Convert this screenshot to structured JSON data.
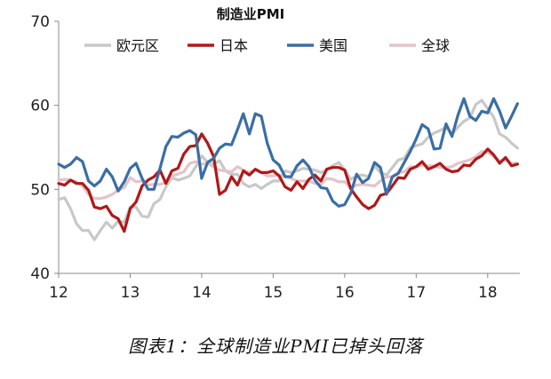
{
  "caption": "图表1：全球制造业PMI已掉头回落",
  "chart_data": {
    "type": "line",
    "title": "制造业PMI",
    "xlabel": "",
    "ylabel": "",
    "ylim": [
      40,
      70
    ],
    "yticks": [
      40,
      50,
      60,
      70
    ],
    "xlim": [
      2012,
      2018.45
    ],
    "xticks": [
      2012,
      2013,
      2014,
      2015,
      2016,
      2017,
      2018
    ],
    "xtick_labels": [
      "12",
      "13",
      "14",
      "15",
      "16",
      "17",
      "18"
    ],
    "grid": false,
    "legend_position": "top",
    "series": [
      {
        "name": "欧元区",
        "color": "#c8c8c8",
        "x": [
          2012.0,
          2012.083,
          2012.167,
          2012.25,
          2012.333,
          2012.417,
          2012.5,
          2012.583,
          2012.667,
          2012.75,
          2012.833,
          2012.917,
          2013.0,
          2013.083,
          2013.167,
          2013.25,
          2013.333,
          2013.417,
          2013.5,
          2013.583,
          2013.667,
          2013.75,
          2013.833,
          2013.917,
          2014.0,
          2014.083,
          2014.167,
          2014.25,
          2014.333,
          2014.417,
          2014.5,
          2014.583,
          2014.667,
          2014.75,
          2014.833,
          2014.917,
          2015.0,
          2015.083,
          2015.167,
          2015.25,
          2015.333,
          2015.417,
          2015.5,
          2015.583,
          2015.667,
          2015.75,
          2015.833,
          2015.917,
          2016.0,
          2016.083,
          2016.167,
          2016.25,
          2016.333,
          2016.417,
          2016.5,
          2016.583,
          2016.667,
          2016.75,
          2016.833,
          2016.917,
          2017.0,
          2017.083,
          2017.167,
          2017.25,
          2017.333,
          2017.417,
          2017.5,
          2017.583,
          2017.667,
          2017.75,
          2017.833,
          2017.917,
          2018.0,
          2018.083,
          2018.167,
          2018.25,
          2018.333,
          2018.417
        ],
        "values": [
          48.8,
          49.0,
          47.7,
          45.9,
          45.1,
          45.1,
          44.0,
          45.1,
          46.1,
          45.4,
          46.2,
          46.1,
          47.9,
          47.9,
          46.8,
          46.7,
          48.3,
          48.8,
          50.3,
          51.4,
          51.1,
          51.3,
          51.6,
          52.7,
          54.0,
          53.2,
          53.0,
          53.4,
          52.2,
          51.8,
          51.8,
          50.7,
          50.3,
          50.6,
          50.1,
          50.6,
          51.0,
          51.0,
          52.2,
          52.0,
          52.2,
          52.5,
          52.4,
          52.3,
          52.0,
          52.3,
          52.8,
          53.2,
          52.3,
          51.2,
          51.6,
          51.7,
          51.5,
          52.8,
          52.0,
          51.7,
          52.6,
          53.5,
          53.7,
          54.9,
          55.2,
          55.4,
          56.2,
          56.7,
          57.0,
          57.4,
          56.6,
          57.4,
          58.1,
          58.5,
          60.1,
          60.6,
          59.6,
          58.6,
          56.6,
          56.2,
          55.5,
          54.9
        ]
      },
      {
        "name": "日本",
        "color": "#b01818",
        "x": [
          2012.0,
          2012.083,
          2012.167,
          2012.25,
          2012.333,
          2012.417,
          2012.5,
          2012.583,
          2012.667,
          2012.75,
          2012.833,
          2012.917,
          2013.0,
          2013.083,
          2013.167,
          2013.25,
          2013.333,
          2013.417,
          2013.5,
          2013.583,
          2013.667,
          2013.75,
          2013.833,
          2013.917,
          2014.0,
          2014.083,
          2014.167,
          2014.25,
          2014.333,
          2014.417,
          2014.5,
          2014.583,
          2014.667,
          2014.75,
          2014.833,
          2014.917,
          2015.0,
          2015.083,
          2015.167,
          2015.25,
          2015.333,
          2015.417,
          2015.5,
          2015.583,
          2015.667,
          2015.75,
          2015.833,
          2015.917,
          2016.0,
          2016.083,
          2016.167,
          2016.25,
          2016.333,
          2016.417,
          2016.5,
          2016.583,
          2016.667,
          2016.75,
          2016.833,
          2016.917,
          2017.0,
          2017.083,
          2017.167,
          2017.25,
          2017.333,
          2017.417,
          2017.5,
          2017.583,
          2017.667,
          2017.75,
          2017.833,
          2017.917,
          2018.0,
          2018.083,
          2018.167,
          2018.25,
          2018.333,
          2018.417
        ],
        "values": [
          50.7,
          50.5,
          51.1,
          50.7,
          50.7,
          49.9,
          47.9,
          47.7,
          48.0,
          46.9,
          46.5,
          45.0,
          47.7,
          48.5,
          50.4,
          51.1,
          51.5,
          52.3,
          50.7,
          52.2,
          52.5,
          54.2,
          55.1,
          55.2,
          56.6,
          55.5,
          53.9,
          49.4,
          49.9,
          51.5,
          50.5,
          52.2,
          51.7,
          52.4,
          52.0,
          52.0,
          52.2,
          51.6,
          50.3,
          49.9,
          50.9,
          50.1,
          51.2,
          51.7,
          51.0,
          52.4,
          52.6,
          52.6,
          52.3,
          50.1,
          49.1,
          48.2,
          47.7,
          48.1,
          49.3,
          49.5,
          50.4,
          51.4,
          51.3,
          52.4,
          52.7,
          53.3,
          52.4,
          52.7,
          53.1,
          52.4,
          52.1,
          52.2,
          52.9,
          52.8,
          53.6,
          54.0,
          54.8,
          54.1,
          53.1,
          53.8,
          52.8,
          53.0
        ]
      },
      {
        "name": "美国",
        "color": "#3a6ea5",
        "x": [
          2012.0,
          2012.083,
          2012.167,
          2012.25,
          2012.333,
          2012.417,
          2012.5,
          2012.583,
          2012.667,
          2012.75,
          2012.833,
          2012.917,
          2013.0,
          2013.083,
          2013.167,
          2013.25,
          2013.333,
          2013.417,
          2013.5,
          2013.583,
          2013.667,
          2013.75,
          2013.833,
          2013.917,
          2014.0,
          2014.083,
          2014.167,
          2014.25,
          2014.333,
          2014.417,
          2014.5,
          2014.583,
          2014.667,
          2014.75,
          2014.833,
          2014.917,
          2015.0,
          2015.083,
          2015.167,
          2015.25,
          2015.333,
          2015.417,
          2015.5,
          2015.583,
          2015.667,
          2015.75,
          2015.833,
          2015.917,
          2016.0,
          2016.083,
          2016.167,
          2016.25,
          2016.333,
          2016.417,
          2016.5,
          2016.583,
          2016.667,
          2016.75,
          2016.833,
          2016.917,
          2017.0,
          2017.083,
          2017.167,
          2017.25,
          2017.333,
          2017.417,
          2017.5,
          2017.583,
          2017.667,
          2017.75,
          2017.833,
          2017.917,
          2018.0,
          2018.083,
          2018.167,
          2018.25,
          2018.333,
          2018.417
        ],
        "values": [
          53.0,
          52.6,
          53.0,
          53.8,
          53.3,
          51.0,
          50.4,
          51.0,
          52.4,
          51.5,
          49.8,
          50.9,
          52.5,
          53.1,
          51.3,
          50.0,
          50.0,
          52.5,
          55.1,
          56.3,
          56.2,
          56.7,
          57.0,
          56.5,
          51.3,
          53.2,
          53.7,
          54.9,
          55.4,
          55.3,
          57.1,
          59.0,
          56.6,
          59.0,
          58.7,
          55.5,
          53.5,
          52.9,
          51.5,
          51.5,
          52.8,
          53.5,
          52.7,
          51.1,
          50.2,
          50.1,
          48.6,
          48.0,
          48.2,
          49.5,
          51.8,
          50.8,
          51.3,
          53.2,
          52.6,
          49.4,
          51.5,
          51.9,
          53.2,
          54.5,
          56.0,
          57.7,
          57.2,
          54.8,
          54.9,
          57.8,
          56.3,
          58.8,
          60.8,
          58.7,
          58.2,
          59.3,
          59.1,
          60.8,
          59.3,
          57.3,
          58.7,
          60.2
        ]
      },
      {
        "name": "全球",
        "color": "#e3c4c9",
        "x": [
          2012.0,
          2012.083,
          2012.167,
          2012.25,
          2012.333,
          2012.417,
          2012.5,
          2012.583,
          2012.667,
          2012.75,
          2012.833,
          2012.917,
          2013.0,
          2013.083,
          2013.167,
          2013.25,
          2013.333,
          2013.417,
          2013.5,
          2013.583,
          2013.667,
          2013.75,
          2013.833,
          2013.917,
          2014.0,
          2014.083,
          2014.167,
          2014.25,
          2014.333,
          2014.417,
          2014.5,
          2014.583,
          2014.667,
          2014.75,
          2014.833,
          2014.917,
          2015.0,
          2015.083,
          2015.167,
          2015.25,
          2015.333,
          2015.417,
          2015.5,
          2015.583,
          2015.667,
          2015.75,
          2015.833,
          2015.917,
          2016.0,
          2016.083,
          2016.167,
          2016.25,
          2016.333,
          2016.417,
          2016.5,
          2016.583,
          2016.667,
          2016.75,
          2016.833,
          2016.917,
          2017.0,
          2017.083,
          2017.167,
          2017.25,
          2017.333,
          2017.417,
          2017.5,
          2017.583,
          2017.667,
          2017.75,
          2017.833,
          2017.917,
          2018.0,
          2018.083,
          2018.167,
          2018.25,
          2018.333,
          2018.417
        ],
        "values": [
          51.1,
          51.2,
          51.1,
          50.9,
          50.4,
          49.4,
          48.9,
          48.9,
          49.1,
          49.4,
          49.9,
          50.2,
          51.4,
          50.9,
          51.0,
          50.5,
          50.6,
          50.6,
          50.8,
          51.6,
          51.8,
          52.1,
          53.1,
          53.3,
          53.0,
          53.1,
          52.7,
          52.3,
          52.2,
          52.1,
          52.7,
          52.3,
          52.0,
          52.3,
          52.0,
          51.6,
          51.6,
          51.7,
          51.6,
          51.3,
          51.0,
          51.0,
          51.0,
          50.7,
          50.6,
          51.3,
          51.2,
          50.9,
          50.9,
          50.2,
          50.5,
          50.6,
          50.5,
          50.4,
          51.0,
          51.5,
          51.5,
          52.0,
          52.1,
          52.7,
          52.7,
          52.9,
          52.8,
          52.8,
          52.6,
          52.6,
          52.7,
          53.1,
          53.3,
          53.5,
          53.9,
          54.5,
          54.4,
          53.9,
          53.4,
          53.5,
          53.1,
          53.1
        ]
      }
    ]
  }
}
